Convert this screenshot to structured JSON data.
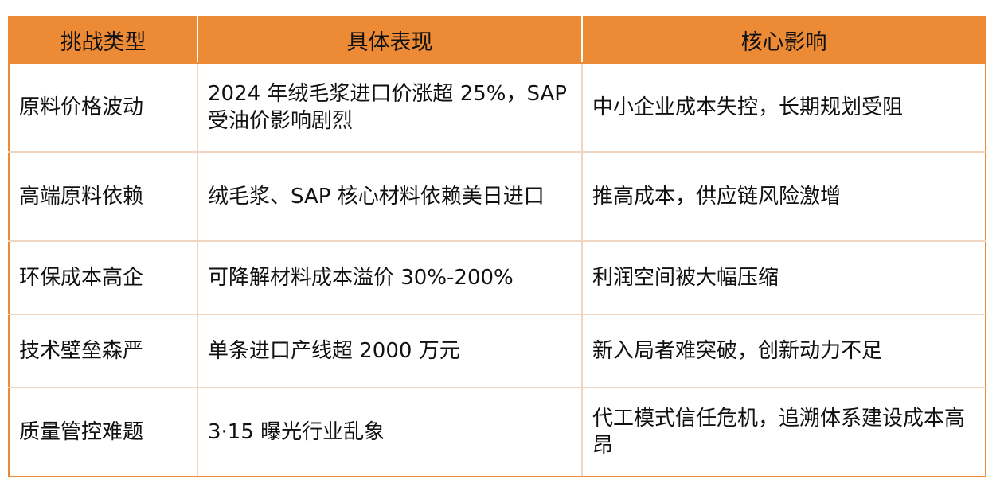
{
  "table": {
    "headers": [
      "挑战类型",
      "具体表现",
      "核心影响"
    ],
    "rows": [
      [
        "原料价格波动",
        "2024 年绒毛浆进口价涨超 25%，SAP 受油价影响剧烈",
        "中小企业成本失控，长期规划受阻"
      ],
      [
        "高端原料依赖",
        "绒毛浆、SAP 核心材料依赖美日进口",
        "推高成本，供应链风险激增"
      ],
      [
        "环保成本高企",
        "可降解材料成本溢价 30%-200%",
        "利润空间被大幅压缩"
      ],
      [
        "技术壁垒森严",
        "单条进口产线超 2000 万元",
        "新入局者难突破，创新动力不足"
      ],
      [
        "质量管控难题",
        "3·15 曝光行业乱象",
        "代工模式信任危机，追溯体系建设成本高昂"
      ]
    ]
  },
  "colors": {
    "header_bg": "#ED8A35",
    "border": "#F0D6C0"
  }
}
